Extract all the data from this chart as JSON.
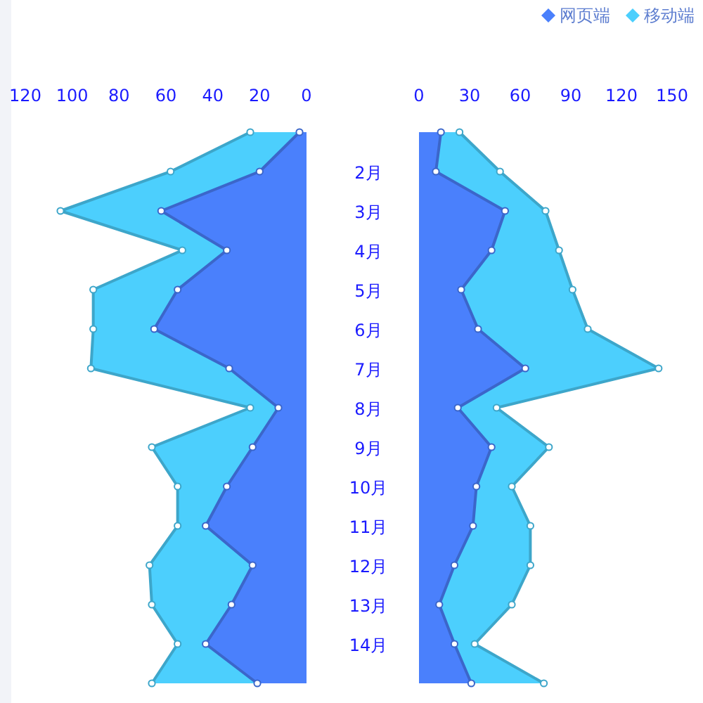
{
  "chart_data": [
    {
      "type": "area",
      "orientation": "horizontal",
      "stacked": true,
      "categories": [
        null,
        null,
        null,
        null,
        null,
        null,
        null,
        null,
        null,
        null,
        null,
        null,
        null,
        null,
        null
      ],
      "xlim": [
        120,
        0
      ],
      "xticks": [
        120,
        100,
        80,
        60,
        40,
        20,
        0
      ],
      "tick_labels": "x",
      "marker": "circle",
      "series": [
        {
          "color": "#4a80fc",
          "values": [
            3,
            20,
            62,
            34,
            55,
            65,
            33,
            12,
            23,
            34,
            43,
            23,
            32,
            43,
            21
          ]
        },
        {
          "color": "#4ccffd",
          "values": [
            21,
            38,
            43,
            19,
            36,
            26,
            59,
            12,
            43,
            21,
            12,
            44,
            34,
            12,
            45
          ]
        }
      ]
    },
    {
      "type": "area",
      "orientation": "horizontal",
      "stacked": true,
      "categories": [
        null,
        "2月",
        "3月",
        "4月",
        "5月",
        "6月",
        "7月",
        "8月",
        "9月",
        "10月",
        "11月",
        "12月",
        "13月",
        "14月",
        null
      ],
      "xlim": [
        0,
        150
      ],
      "xticks": [
        0,
        30,
        60,
        90,
        120,
        150
      ],
      "marker": "circle",
      "legend": "top right",
      "series": [
        {
          "name": "网页端",
          "color": "#4a80fc",
          "values": [
            13,
            10,
            51,
            43,
            25,
            35,
            63,
            23,
            43,
            34,
            32,
            21,
            12,
            21,
            31
          ]
        },
        {
          "name": "移动端",
          "color": "#4ccffd",
          "values": [
            11,
            38,
            24,
            40,
            66,
            65,
            79,
            23,
            34,
            21,
            34,
            45,
            43,
            12,
            43
          ]
        }
      ]
    }
  ]
}
